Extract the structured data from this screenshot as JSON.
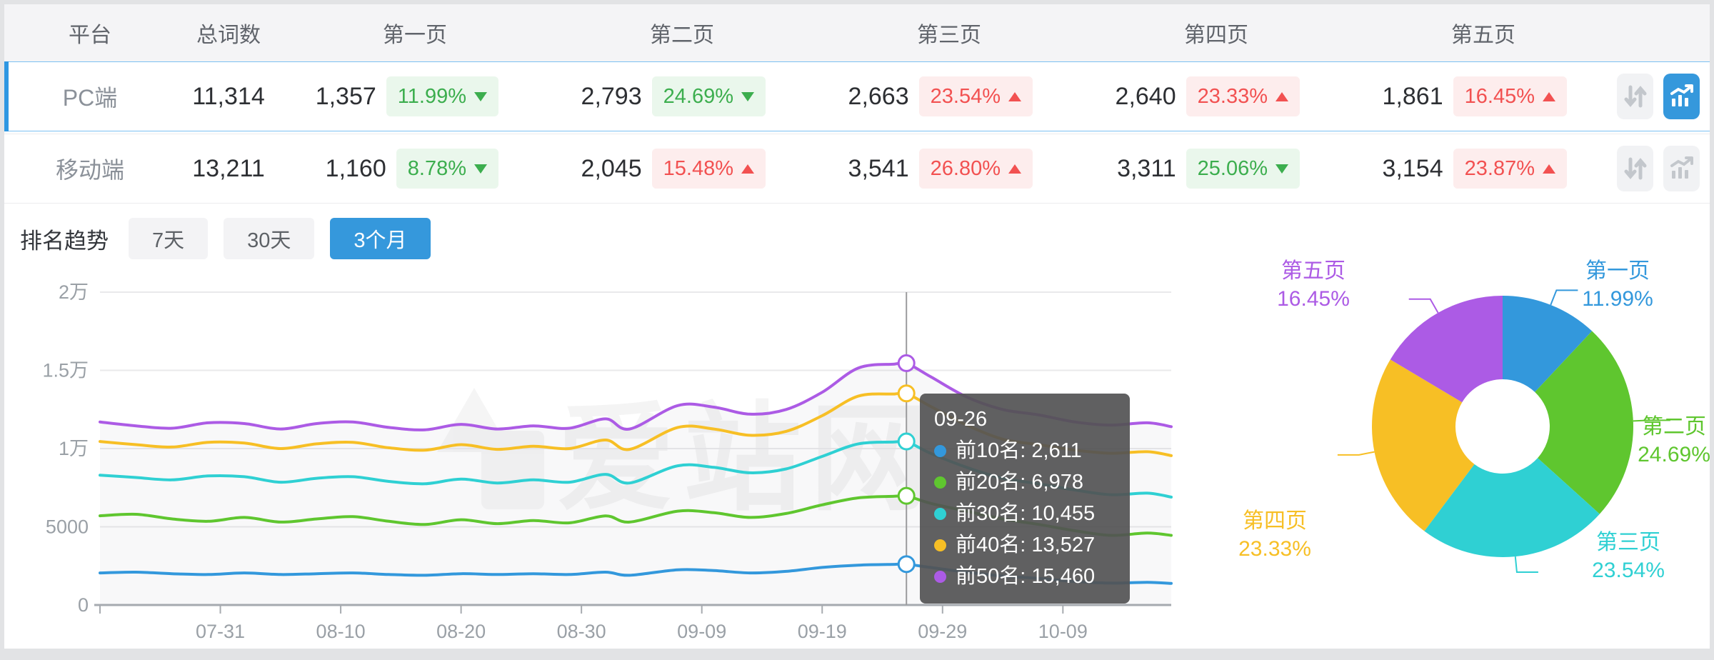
{
  "palette": {
    "blue": "#3398DC",
    "green": "#5FC62F",
    "cyan": "#2FD0D3",
    "yellow": "#F7BF25",
    "purple": "#AC5BE5",
    "up_red": "#F25151",
    "down_green": "#3CAE4E",
    "accent": "#3598DC"
  },
  "table": {
    "headers": {
      "platform": "平台",
      "total": "总词数",
      "page1": "第一页",
      "page2": "第二页",
      "page3": "第三页",
      "page4": "第四页",
      "page5": "第五页"
    },
    "rows": [
      {
        "platform": "PC端",
        "total": "11,314",
        "pages": [
          {
            "count": "1,357",
            "percent": "11.99%",
            "dir": "down"
          },
          {
            "count": "2,793",
            "percent": "24.69%",
            "dir": "down"
          },
          {
            "count": "2,663",
            "percent": "23.54%",
            "dir": "up"
          },
          {
            "count": "2,640",
            "percent": "23.33%",
            "dir": "up"
          },
          {
            "count": "1,861",
            "percent": "16.45%",
            "dir": "up"
          }
        ],
        "tools": {
          "chart_state": "active"
        }
      },
      {
        "platform": "移动端",
        "total": "13,211",
        "pages": [
          {
            "count": "1,160",
            "percent": "8.78%",
            "dir": "down"
          },
          {
            "count": "2,045",
            "percent": "15.48%",
            "dir": "up"
          },
          {
            "count": "3,541",
            "percent": "26.80%",
            "dir": "up"
          },
          {
            "count": "3,311",
            "percent": "25.06%",
            "dir": "down"
          },
          {
            "count": "3,154",
            "percent": "23.87%",
            "dir": "up"
          }
        ],
        "tools": {
          "chart_state": "idle"
        }
      }
    ]
  },
  "trend": {
    "title": "排名趋势",
    "tabs": [
      {
        "label": "7天",
        "state": "idle"
      },
      {
        "label": "30天",
        "state": "idle"
      },
      {
        "label": "3个月",
        "state": "active"
      }
    ],
    "watermark": "爱站网",
    "tooltip": {
      "date": "09-26",
      "items": [
        {
          "name": "前10名",
          "value": "2,611",
          "color": "blue"
        },
        {
          "name": "前20名",
          "value": "6,978",
          "color": "green"
        },
        {
          "name": "前30名",
          "value": "10,455",
          "color": "cyan"
        },
        {
          "name": "前40名",
          "value": "13,527",
          "color": "yellow"
        },
        {
          "name": "前50名",
          "value": "15,460",
          "color": "purple"
        }
      ]
    }
  },
  "chart_data": [
    {
      "type": "line",
      "title": "排名趋势 (3个月)",
      "ylim": [
        0,
        20000
      ],
      "grid": true,
      "y_ticks": [
        {
          "label": "0",
          "value": 0
        },
        {
          "label": "5000",
          "value": 5000
        },
        {
          "label": "1万",
          "value": 10000
        },
        {
          "label": "1.5万",
          "value": 15000
        },
        {
          "label": "2万",
          "value": 20000
        }
      ],
      "x_ticks": [
        {
          "label": "07-31",
          "day": 10
        },
        {
          "label": "08-10",
          "day": 20
        },
        {
          "label": "08-20",
          "day": 30
        },
        {
          "label": "08-30",
          "day": 40
        },
        {
          "label": "09-09",
          "day": 50
        },
        {
          "label": "09-19",
          "day": 60
        },
        {
          "label": "09-29",
          "day": 70
        },
        {
          "label": "10-09",
          "day": 80
        }
      ],
      "day_range": [
        0,
        89
      ],
      "days": [
        0,
        3,
        6,
        9,
        12,
        15,
        18,
        21,
        24,
        27,
        30,
        33,
        36,
        39,
        42,
        44,
        48,
        51,
        54,
        57,
        60,
        63,
        66,
        67,
        69,
        72,
        75,
        78,
        81,
        84,
        87,
        89
      ],
      "series": [
        {
          "name": "前10名",
          "color": "blue",
          "values": [
            2050,
            2100,
            2000,
            1950,
            2050,
            1950,
            2000,
            2050,
            1950,
            1900,
            2000,
            1950,
            2000,
            1950,
            2100,
            1900,
            2250,
            2200,
            2050,
            2150,
            2400,
            2550,
            2600,
            2611,
            2400,
            2100,
            1850,
            1700,
            1500,
            1400,
            1450,
            1380
          ]
        },
        {
          "name": "前20名",
          "color": "green",
          "values": [
            5700,
            5800,
            5500,
            5350,
            5600,
            5300,
            5500,
            5650,
            5350,
            5150,
            5450,
            5200,
            5400,
            5250,
            5700,
            5300,
            6000,
            5900,
            5600,
            5850,
            6400,
            6850,
            6950,
            6978,
            6500,
            6000,
            5500,
            5150,
            4750,
            4450,
            4600,
            4450
          ]
        },
        {
          "name": "前30名",
          "color": "cyan",
          "values": [
            8300,
            8150,
            8000,
            8250,
            8200,
            7850,
            8100,
            8200,
            7900,
            7750,
            8050,
            7800,
            8000,
            7850,
            8350,
            7800,
            8900,
            8800,
            8450,
            8700,
            9500,
            10300,
            10420,
            10455,
            9700,
            8800,
            8100,
            7750,
            7350,
            7050,
            7150,
            6900
          ]
        },
        {
          "name": "前40名",
          "color": "yellow",
          "values": [
            10450,
            10250,
            10100,
            10400,
            10350,
            10000,
            10300,
            10400,
            10050,
            9900,
            10250,
            9950,
            10150,
            10000,
            10550,
            9950,
            11350,
            11250,
            10850,
            11100,
            12100,
            13350,
            13490,
            13527,
            12700,
            11500,
            10600,
            10250,
            9900,
            9700,
            9800,
            9550
          ]
        },
        {
          "name": "前50名",
          "color": "purple",
          "values": [
            11700,
            11450,
            11300,
            11650,
            11600,
            11250,
            11600,
            11700,
            11350,
            11200,
            11550,
            11250,
            11450,
            11300,
            11900,
            11250,
            12750,
            12650,
            12200,
            12500,
            13600,
            15150,
            15400,
            15460,
            14600,
            13300,
            12500,
            12150,
            11700,
            11500,
            11650,
            11400
          ]
        }
      ],
      "highlight": {
        "date": "09-26",
        "day": 67,
        "values": {
          "前10名": 2611,
          "前20名": 6978,
          "前30名": 10455,
          "前40名": 13527,
          "前50名": 15460
        }
      }
    },
    {
      "type": "pie",
      "title": "页面排名占比",
      "inner_radius_ratio": 0.36,
      "start_angle": "top",
      "direction": "clockwise",
      "slices": [
        {
          "label": "第一页",
          "percent": 11.99,
          "percent_label": "11.99%",
          "color": "blue"
        },
        {
          "label": "第二页",
          "percent": 24.69,
          "percent_label": "24.69%",
          "color": "green"
        },
        {
          "label": "第三页",
          "percent": 23.54,
          "percent_label": "23.54%",
          "color": "cyan"
        },
        {
          "label": "第四页",
          "percent": 23.33,
          "percent_label": "23.33%",
          "color": "yellow"
        },
        {
          "label": "第五页",
          "percent": 16.45,
          "percent_label": "16.45%",
          "color": "purple"
        }
      ]
    }
  ]
}
